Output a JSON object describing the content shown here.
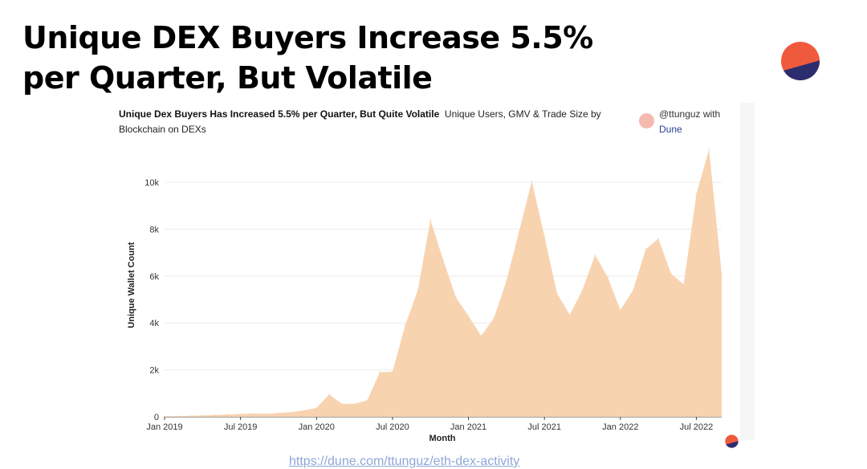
{
  "slide": {
    "title": "Unique DEX Buyers Increase 5.5% per Quarter, But Volatile",
    "footer_link": "https://dune.com/ttunguz/eth-dex-activity"
  },
  "chart_header": {
    "title_bold": "Unique Dex Buyers Has Increased 5.5% per Quarter, But Quite Volatile",
    "subtitle": "Unique Users, GMV & Trade Size by Blockchain on DEXs",
    "credit_text": "@ttunguz with",
    "credit_link": "Dune"
  },
  "colors": {
    "area_fill": "#f8d3b0",
    "logo_top": "#f05a3c",
    "logo_bottom": "#2c2d6e",
    "credit_dot": "#f6b9b0"
  },
  "chart_data": {
    "type": "area",
    "xlabel": "Month",
    "ylabel": "Unique Wallet Count",
    "ylim": [
      0,
      10000
    ],
    "yticks": [
      0,
      2000,
      4000,
      6000,
      8000,
      10000
    ],
    "ytick_labels": [
      "0",
      "2k",
      "4k",
      "6k",
      "8k",
      "10k"
    ],
    "xtick_labels": [
      "Jan 2019",
      "Jul 2019",
      "Jan 2020",
      "Jul 2020",
      "Jan 2021",
      "Jul 2021",
      "Jan 2022",
      "Jul 2022"
    ],
    "grid": true,
    "x": [
      "2019-01",
      "2019-02",
      "2019-03",
      "2019-04",
      "2019-05",
      "2019-06",
      "2019-07",
      "2019-08",
      "2019-09",
      "2019-10",
      "2019-11",
      "2019-12",
      "2020-01",
      "2020-02",
      "2020-03",
      "2020-04",
      "2020-05",
      "2020-06",
      "2020-07",
      "2020-08",
      "2020-09",
      "2020-10",
      "2020-11",
      "2020-12",
      "2021-01",
      "2021-02",
      "2021-03",
      "2021-04",
      "2021-05",
      "2021-06",
      "2021-07",
      "2021-08",
      "2021-09",
      "2021-10",
      "2021-11",
      "2021-12",
      "2022-01",
      "2022-02",
      "2022-03",
      "2022-04",
      "2022-05",
      "2022-06",
      "2022-07",
      "2022-08",
      "2022-09"
    ],
    "series": [
      {
        "values": [
          20,
          30,
          40,
          60,
          80,
          100,
          120,
          140,
          130,
          160,
          200,
          270,
          380,
          950,
          550,
          550,
          700,
          1900,
          1920,
          3900,
          5400,
          8400,
          6700,
          5100,
          4300,
          3450,
          4200,
          5800,
          7900,
          10050,
          7700,
          5250,
          4350,
          5400,
          6900,
          5950,
          4550,
          5400,
          7150,
          7600,
          6100,
          5650,
          9500,
          11400,
          6100
        ]
      }
    ]
  }
}
